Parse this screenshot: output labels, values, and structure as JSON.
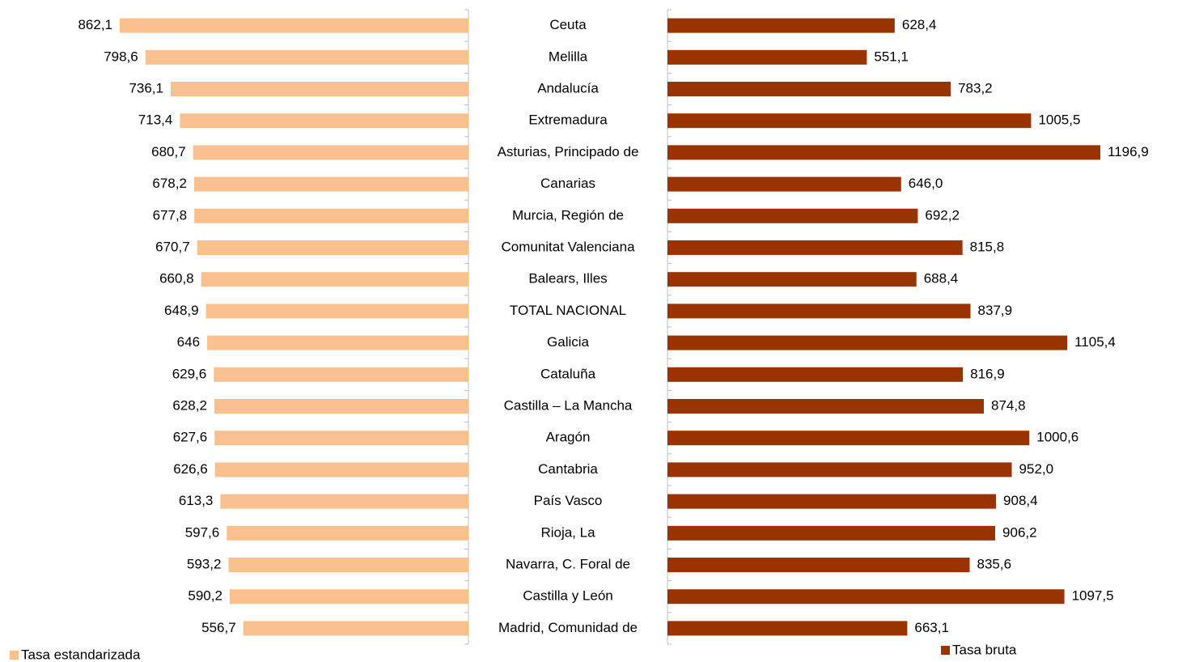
{
  "chart_data": {
    "type": "bar",
    "orientation": "horizontal",
    "categories": [
      "Ceuta",
      "Melilla",
      "Andalucía",
      "Extremadura",
      "Asturias, Principado de",
      "Canarias",
      "Murcia, Región de",
      "Comunitat Valenciana",
      "Balears, Illes",
      "TOTAL NACIONAL",
      "Galicia",
      "Cataluña",
      "Castilla – La Mancha",
      "Aragón",
      "Cantabria",
      "País Vasco",
      "Rioja, La",
      "Navarra, C. Foral de",
      "Castilla y León",
      "Madrid, Comunidad de"
    ],
    "series": [
      {
        "name": "Tasa estandarizada",
        "color": "#fac090",
        "values": [
          862.1,
          798.6,
          736.1,
          713.4,
          680.7,
          678.2,
          677.8,
          670.7,
          660.8,
          648.9,
          646,
          629.6,
          628.2,
          627.6,
          626.6,
          613.3,
          597.6,
          593.2,
          590.2,
          556.7
        ],
        "value_labels": [
          "862,1",
          "798,6",
          "736,1",
          "713,4",
          "680,7",
          "678,2",
          "677,8",
          "670,7",
          "660,8",
          "648,9",
          "646",
          "629,6",
          "628,2",
          "627,6",
          "626,6",
          "613,3",
          "597,6",
          "593,2",
          "590,2",
          "556,7"
        ]
      },
      {
        "name": "Tasa bruta",
        "color": "#993300",
        "values": [
          628.4,
          551.1,
          783.2,
          1005.5,
          1196.9,
          646.0,
          692.2,
          815.8,
          688.4,
          837.9,
          1105.4,
          816.9,
          874.8,
          1000.6,
          952.0,
          908.4,
          906.2,
          835.6,
          1097.5,
          663.1
        ],
        "value_labels": [
          "628,4",
          "551,1",
          "783,2",
          "1005,5",
          "1196,9",
          "646,0",
          "692,2",
          "815,8",
          "688,4",
          "837,9",
          "1105,4",
          "816,9",
          "874,8",
          "1000,6",
          "952,0",
          "908,4",
          "906,2",
          "835,6",
          "1097,5",
          "663,1"
        ]
      }
    ]
  }
}
